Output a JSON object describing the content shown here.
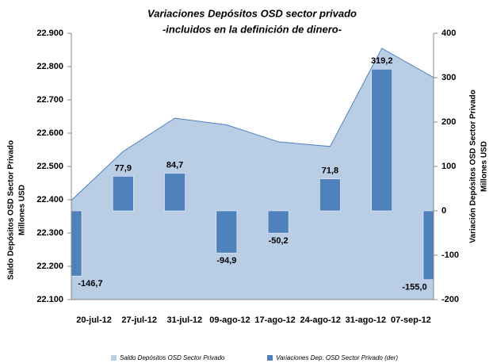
{
  "chart_data": {
    "type": "combo",
    "title": [
      "Variaciones Depósitos OSD sector privado",
      "-incluidos en la definición de dinero-"
    ],
    "y_label": [
      "Saldo Depósitos OSD  Sector Privado",
      "Millones USD"
    ],
    "y2_label": [
      "Variación  Depósitos OSD  Sector Privado",
      "Millones USD"
    ],
    "categories": [
      "20-jul-12",
      "27-jul-12",
      "31-jul-12",
      "09-ago-12",
      "17-ago-12",
      "24-ago-12",
      "31-ago-12",
      "07-sep-12"
    ],
    "series": [
      {
        "name": "Saldo Depósitos OSD Sector Privado",
        "type": "area",
        "color": "#b9cde5",
        "line_color": "#4f81bd",
        "values": [
          22398,
          22545,
          22645,
          22625,
          22574,
          22560,
          22855,
          22767
        ]
      },
      {
        "name": "Variaciones Dep. OSD Sector Privado (der)",
        "type": "bar",
        "axis": "y2",
        "color": "#4f81bd",
        "values": [
          -146.7,
          77.9,
          84.7,
          -94.9,
          -50.2,
          71.8,
          319.2,
          -155.0
        ],
        "value_labels": [
          "-146,7",
          "77,9",
          "84,7",
          "-94,9",
          "-50,2",
          "71,8",
          "319,2",
          "-155,0"
        ]
      }
    ],
    "ylim": [
      22100,
      22900
    ],
    "yticks": [
      {
        "value": 22100,
        "label": "22.100"
      },
      {
        "value": 22200,
        "label": "22.200"
      },
      {
        "value": 22300,
        "label": "22.300"
      },
      {
        "value": 22400,
        "label": "22.400"
      },
      {
        "value": 22500,
        "label": "22.500"
      },
      {
        "value": 22600,
        "label": "22.600"
      },
      {
        "value": 22700,
        "label": "22.700"
      },
      {
        "value": 22800,
        "label": "22.800"
      },
      {
        "value": 22900,
        "label": "22.900"
      }
    ],
    "y2lim": [
      -200,
      400
    ],
    "y2ticks": [
      -200,
      -100,
      0,
      100,
      200,
      300,
      400
    ],
    "grid": false
  }
}
